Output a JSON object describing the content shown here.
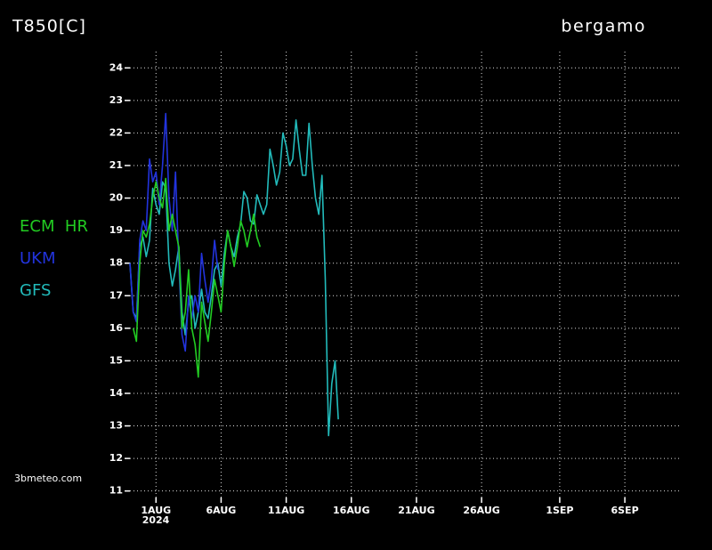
{
  "chart_data": {
    "type": "line",
    "title": "T850[C]",
    "location": "bergamo",
    "source": "3bmeteo.com",
    "year_label": "2024",
    "legend": "left",
    "grid": true,
    "xlim": [
      -2,
      40.3
    ],
    "ylim": [
      10.8,
      24.5
    ],
    "xticks": [
      {
        "value": 0,
        "label": "1AUG"
      },
      {
        "value": 5,
        "label": "6AUG"
      },
      {
        "value": 10,
        "label": "11AUG"
      },
      {
        "value": 15,
        "label": "16AUG"
      },
      {
        "value": 20,
        "label": "21AUG"
      },
      {
        "value": 25,
        "label": "26AUG"
      },
      {
        "value": 31,
        "label": "1SEP"
      },
      {
        "value": 36,
        "label": "6SEP"
      }
    ],
    "yticks": [
      11,
      12,
      13,
      14,
      15,
      16,
      17,
      18,
      19,
      20,
      21,
      22,
      23,
      24
    ],
    "series": [
      {
        "name": "ECM  HR",
        "color": "#22cc22",
        "x": [
          -1.75,
          -1.5,
          -1.25,
          -1,
          -0.75,
          -0.5,
          -0.25,
          0,
          0.25,
          0.5,
          0.75,
          1,
          1.25,
          1.5,
          1.75,
          2,
          2.25,
          2.5,
          2.75,
          3,
          3.25,
          3.5,
          3.75,
          4,
          4.25,
          4.5,
          4.75,
          5,
          5.25,
          5.5,
          5.75,
          6,
          6.25,
          6.5,
          6.75,
          7,
          7.25,
          7.5,
          7.75,
          8
        ],
        "values": [
          16.0,
          15.6,
          18.0,
          19.0,
          18.8,
          19.2,
          20.0,
          20.5,
          20.0,
          19.7,
          20.6,
          19.0,
          19.5,
          19.0,
          18.5,
          16.0,
          16.5,
          17.8,
          16.0,
          15.5,
          14.5,
          16.8,
          16.2,
          15.6,
          16.5,
          17.5,
          17.0,
          16.5,
          18.0,
          19.0,
          18.5,
          17.9,
          18.5,
          19.3,
          19.0,
          18.5,
          19.0,
          19.5,
          18.8,
          18.5
        ]
      },
      {
        "name": "UKM",
        "color": "#2233dd",
        "x": [
          -2,
          -1.75,
          -1.5,
          -1.25,
          -1,
          -0.75,
          -0.5,
          -0.25,
          0,
          0.25,
          0.5,
          0.75,
          1,
          1.25,
          1.5,
          1.75,
          2,
          2.25,
          2.5,
          2.75,
          3,
          3.25,
          3.5,
          3.75,
          4,
          4.25,
          4.5,
          4.75
        ],
        "values": [
          18.0,
          16.5,
          16.2,
          18.7,
          19.3,
          19.0,
          21.2,
          20.5,
          20.8,
          19.8,
          21.0,
          22.6,
          20.0,
          19.0,
          20.8,
          18.0,
          15.8,
          15.3,
          17.0,
          16.3,
          17.0,
          16.5,
          18.3,
          17.5,
          16.8,
          17.5,
          18.7,
          17.8
        ]
      },
      {
        "name": "GFS",
        "color": "#22bbbb",
        "x": [
          -2,
          -1.75,
          -1.5,
          -1.25,
          -1,
          -0.75,
          -0.5,
          -0.25,
          0,
          0.25,
          0.5,
          0.75,
          1,
          1.25,
          1.5,
          1.75,
          2,
          2.25,
          2.5,
          2.75,
          3,
          3.25,
          3.5,
          3.75,
          4,
          4.25,
          4.5,
          4.75,
          5,
          5.25,
          5.5,
          5.75,
          6,
          6.25,
          6.5,
          6.75,
          7,
          7.25,
          7.5,
          7.75,
          8,
          8.25,
          8.5,
          8.75,
          9,
          9.25,
          9.5,
          9.75,
          10,
          10.25,
          10.5,
          10.75,
          11,
          11.25,
          11.5,
          11.75,
          12,
          12.25,
          12.5,
          12.75,
          13,
          13.25,
          13.5,
          13.75,
          14
        ],
        "values": [
          18.0,
          16.5,
          16.3,
          18.5,
          18.8,
          18.2,
          18.7,
          20.3,
          19.8,
          19.5,
          20.5,
          20.3,
          18.0,
          17.3,
          17.8,
          18.5,
          16.5,
          15.8,
          16.8,
          17.0,
          16.0,
          16.5,
          17.2,
          16.5,
          16.3,
          17.0,
          17.8,
          18.0,
          17.3,
          18.3,
          19.0,
          18.5,
          18.2,
          18.8,
          19.2,
          20.2,
          20.0,
          19.3,
          19.2,
          20.1,
          19.8,
          19.5,
          19.8,
          21.5,
          21.0,
          20.4,
          20.8,
          22.0,
          21.6,
          21.0,
          21.2,
          22.4,
          21.5,
          20.7,
          20.7,
          22.3,
          21.0,
          20.0,
          19.5,
          20.7,
          17.5,
          12.7,
          14.3,
          15.0,
          13.2
        ]
      }
    ]
  }
}
